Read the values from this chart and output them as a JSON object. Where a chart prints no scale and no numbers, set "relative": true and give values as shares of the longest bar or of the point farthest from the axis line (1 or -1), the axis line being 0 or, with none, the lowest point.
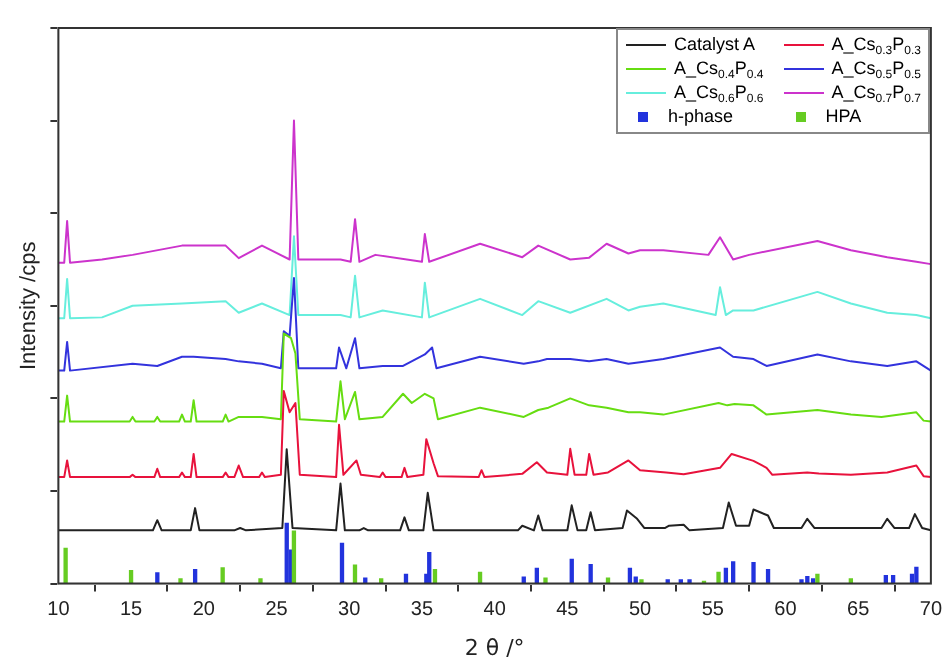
{
  "chart_data": {
    "type": "line",
    "relative": true,
    "xlabel": "2 θ /°",
    "ylabel": "Intensity /cps",
    "xlim": [
      10,
      70
    ],
    "xticks": [
      10,
      15,
      20,
      25,
      30,
      35,
      40,
      45,
      50,
      55,
      60,
      65,
      70
    ],
    "tick_labels": "x",
    "grid": false,
    "legend": "top right",
    "marker": "none",
    "line_style": "solid",
    "series": [
      {
        "name": "Catalyst A",
        "color": "#222222",
        "x": [
          10,
          16.5,
          16.8,
          17.1,
          19.1,
          19.4,
          19.7,
          22.1,
          22.5,
          22.9,
          25.4,
          25.7,
          26.1,
          29.1,
          29.4,
          29.7,
          30.7,
          31,
          31.3,
          33.5,
          33.8,
          34.1,
          35.1,
          35.4,
          35.8,
          41.6,
          41.9,
          42.7,
          43,
          43.3,
          45,
          45.3,
          45.7,
          46.3,
          46.6,
          46.9,
          48.8,
          49.1,
          49.8,
          50.3,
          51.7,
          52,
          53,
          53.4,
          55.7,
          56.1,
          56.6,
          57.5,
          57.8,
          58.8,
          59.2,
          61.1,
          61.5,
          62,
          66.6,
          67,
          67.5,
          68.5,
          68.9,
          69.4,
          70
        ],
        "values": [
          0.115,
          0.115,
          0.137,
          0.115,
          0.115,
          0.163,
          0.115,
          0.115,
          0.12,
          0.115,
          0.12,
          0.29,
          0.12,
          0.115,
          0.216,
          0.115,
          0.115,
          0.12,
          0.115,
          0.115,
          0.143,
          0.115,
          0.115,
          0.196,
          0.115,
          0.115,
          0.125,
          0.115,
          0.147,
          0.115,
          0.115,
          0.169,
          0.115,
          0.115,
          0.154,
          0.115,
          0.12,
          0.158,
          0.14,
          0.12,
          0.12,
          0.125,
          0.127,
          0.115,
          0.12,
          0.175,
          0.125,
          0.125,
          0.16,
          0.147,
          0.12,
          0.12,
          0.14,
          0.12,
          0.12,
          0.14,
          0.12,
          0.12,
          0.15,
          0.12,
          0.115
        ]
      },
      {
        "name": "A_Cs$_{0.3}$P$_{0.3}$",
        "color": "#e8123c",
        "x": [
          10,
          10.4,
          10.6,
          10.8,
          14.9,
          15.1,
          15.3,
          16.6,
          16.8,
          17,
          18.3,
          18.5,
          18.7,
          19.1,
          19.3,
          19.5,
          21.3,
          21.5,
          21.7,
          22.1,
          22.4,
          22.7,
          23.8,
          24,
          24.2,
          25.3,
          25.5,
          25.9,
          26.3,
          26.6,
          29.1,
          29.3,
          29.6,
          30.5,
          30.8,
          32.1,
          32.3,
          32.5,
          33.6,
          33.8,
          34,
          35.1,
          35.3,
          35.8,
          36.1,
          38.9,
          39.1,
          39.3,
          41.9,
          42.9,
          43.6,
          45,
          45.2,
          45.5,
          46.3,
          46.5,
          46.8,
          47.8,
          49.2,
          50,
          51.8,
          53,
          55.5,
          56.3,
          57.8,
          58.7,
          59.1,
          61.5,
          62.3,
          64.5,
          67,
          69,
          69.5,
          70
        ],
        "values": [
          0.23,
          0.23,
          0.266,
          0.23,
          0.23,
          0.235,
          0.23,
          0.23,
          0.248,
          0.23,
          0.23,
          0.24,
          0.23,
          0.23,
          0.28,
          0.23,
          0.23,
          0.24,
          0.23,
          0.23,
          0.255,
          0.23,
          0.23,
          0.24,
          0.23,
          0.235,
          0.416,
          0.37,
          0.39,
          0.235,
          0.23,
          0.343,
          0.235,
          0.266,
          0.235,
          0.23,
          0.24,
          0.23,
          0.23,
          0.25,
          0.23,
          0.235,
          0.312,
          0.26,
          0.232,
          0.23,
          0.245,
          0.23,
          0.237,
          0.262,
          0.24,
          0.235,
          0.291,
          0.235,
          0.235,
          0.28,
          0.235,
          0.24,
          0.266,
          0.245,
          0.24,
          0.236,
          0.25,
          0.28,
          0.265,
          0.25,
          0.235,
          0.24,
          0.238,
          0.235,
          0.24,
          0.255,
          0.232,
          0.23
        ]
      },
      {
        "name": "A_Cs$_{0.4}$P$_{0.4}$",
        "color": "#66dd11",
        "x": [
          10,
          10.4,
          10.6,
          10.8,
          14.9,
          15.1,
          15.3,
          16.6,
          16.8,
          17,
          18.3,
          18.5,
          18.7,
          19.1,
          19.3,
          19.5,
          21.3,
          21.5,
          21.7,
          22.4,
          24,
          25.3,
          25.5,
          26,
          26.3,
          26.6,
          29.1,
          29.4,
          29.7,
          30.4,
          30.7,
          32.3,
          33.7,
          34.3,
          35.2,
          35.8,
          36.1,
          39,
          42,
          43,
          43.7,
          45.2,
          46.5,
          47.7,
          49.2,
          50,
          51.6,
          55.4,
          56,
          56.5,
          57.8,
          58.7,
          62.2,
          64.5,
          66.6,
          69,
          69.5,
          70
        ],
        "values": [
          0.35,
          0.35,
          0.406,
          0.35,
          0.35,
          0.36,
          0.35,
          0.35,
          0.36,
          0.35,
          0.35,
          0.365,
          0.35,
          0.35,
          0.396,
          0.35,
          0.35,
          0.365,
          0.35,
          0.36,
          0.36,
          0.355,
          0.54,
          0.53,
          0.497,
          0.355,
          0.35,
          0.437,
          0.355,
          0.414,
          0.355,
          0.36,
          0.41,
          0.39,
          0.41,
          0.4,
          0.355,
          0.38,
          0.36,
          0.375,
          0.38,
          0.4,
          0.385,
          0.38,
          0.37,
          0.37,
          0.365,
          0.39,
          0.385,
          0.388,
          0.385,
          0.365,
          0.375,
          0.365,
          0.36,
          0.37,
          0.352,
          0.35
        ]
      },
      {
        "name": "A_Cs$_{0.5}$P$_{0.5}$",
        "color": "#3333dd",
        "x": [
          10,
          10.4,
          10.6,
          10.8,
          15.1,
          16.8,
          18.5,
          19.3,
          21.5,
          22.4,
          24,
          25.3,
          25.5,
          25.9,
          26.2,
          26.5,
          29.1,
          29.3,
          29.8,
          30.4,
          30.7,
          32.3,
          33.7,
          35.2,
          35.7,
          36,
          39,
          42,
          43,
          43.6,
          45.2,
          46.5,
          47.7,
          49.2,
          50,
          51.6,
          55.5,
          56.4,
          57.8,
          58.7,
          62.2,
          64.5,
          67,
          69,
          70
        ],
        "values": [
          0.46,
          0.46,
          0.522,
          0.46,
          0.475,
          0.47,
          0.49,
          0.49,
          0.485,
          0.48,
          0.475,
          0.465,
          0.545,
          0.535,
          0.66,
          0.465,
          0.465,
          0.51,
          0.465,
          0.53,
          0.465,
          0.47,
          0.47,
          0.495,
          0.51,
          0.465,
          0.49,
          0.475,
          0.48,
          0.485,
          0.485,
          0.48,
          0.485,
          0.475,
          0.478,
          0.485,
          0.51,
          0.49,
          0.485,
          0.47,
          0.495,
          0.48,
          0.47,
          0.48,
          0.46
        ]
      },
      {
        "name": "A_Cs$_{0.6}$P$_{0.6}$",
        "color": "#66eedd",
        "x": [
          10,
          10.4,
          10.6,
          10.8,
          13,
          15.1,
          18.5,
          21.5,
          22.4,
          24,
          25.9,
          26.2,
          26.5,
          29.4,
          30.1,
          30.4,
          30.7,
          32.3,
          35,
          35.2,
          35.5,
          39,
          41.9,
          43,
          45.2,
          47.7,
          49.2,
          50,
          51.6,
          55.2,
          55.5,
          55.9,
          56.4,
          57.8,
          62.2,
          64.5,
          67,
          69,
          70
        ],
        "values": [
          0.573,
          0.573,
          0.658,
          0.573,
          0.575,
          0.6,
          0.605,
          0.61,
          0.585,
          0.605,
          0.58,
          0.75,
          0.58,
          0.58,
          0.575,
          0.665,
          0.575,
          0.59,
          0.575,
          0.65,
          0.575,
          0.615,
          0.58,
          0.61,
          0.585,
          0.615,
          0.59,
          0.598,
          0.605,
          0.58,
          0.64,
          0.58,
          0.59,
          0.59,
          0.63,
          0.605,
          0.585,
          0.58,
          0.573
        ]
      },
      {
        "name": "A_Cs$_{0.7}$P$_{0.7}$",
        "color": "#cc33cc",
        "x": [
          10,
          10.4,
          10.6,
          10.8,
          13,
          15.1,
          18.5,
          21.5,
          22.4,
          24,
          25.9,
          26.2,
          26.5,
          29.4,
          30.1,
          30.4,
          30.7,
          31.8,
          35,
          35.2,
          35.5,
          39,
          41.9,
          43,
          45.2,
          46.5,
          47.7,
          49.2,
          50,
          51.6,
          54.7,
          55.5,
          56.4,
          57.5,
          62.2,
          64.5,
          67,
          69,
          70
        ],
        "values": [
          0.693,
          0.693,
          0.783,
          0.693,
          0.7,
          0.71,
          0.73,
          0.73,
          0.703,
          0.73,
          0.7,
          1,
          0.7,
          0.7,
          0.695,
          0.787,
          0.695,
          0.71,
          0.695,
          0.755,
          0.695,
          0.734,
          0.705,
          0.73,
          0.7,
          0.704,
          0.734,
          0.713,
          0.72,
          0.72,
          0.71,
          0.748,
          0.7,
          0.71,
          0.74,
          0.72,
          0.705,
          0.695,
          0.69
        ]
      },
      {
        "name": "h-phase",
        "type": "bar",
        "color": "#2233dd",
        "x": [
          16.7,
          19.3,
          25.6,
          25.9,
          29.4,
          31,
          33.8,
          35.2,
          35.4,
          41.9,
          42.8,
          45.2,
          46.5,
          49.2,
          49.6,
          51.8,
          52.7,
          53.3,
          55.8,
          56.3,
          57.7,
          58.7,
          61,
          61.4,
          61.8,
          66.8,
          67.3,
          68.6,
          68.9
        ],
        "values": [
          0.023,
          0.03,
          0.13,
          0.072,
          0.087,
          0.012,
          0.02,
          0.02,
          0.067,
          0.014,
          0.033,
          0.052,
          0.041,
          0.033,
          0.014,
          0.008,
          0.008,
          0.008,
          0.033,
          0.047,
          0.045,
          0.03,
          0.008,
          0.015,
          0.01,
          0.017,
          0.017,
          0.02,
          0.035
        ]
      },
      {
        "name": "HPA",
        "type": "bar",
        "color": "#66cc22",
        "x": [
          10.6,
          15.1,
          18.5,
          21.4,
          24,
          26.3,
          30.5,
          32.3,
          36,
          39.1,
          43.6,
          47.9,
          50.2,
          54.5,
          55.5,
          62.3,
          64.6
        ],
        "values": [
          0.076,
          0.028,
          0.01,
          0.034,
          0.01,
          0.113,
          0.04,
          0.01,
          0.03,
          0.024,
          0.012,
          0.012,
          0.008,
          0.005,
          0.024,
          0.02,
          0.01
        ]
      }
    ]
  }
}
